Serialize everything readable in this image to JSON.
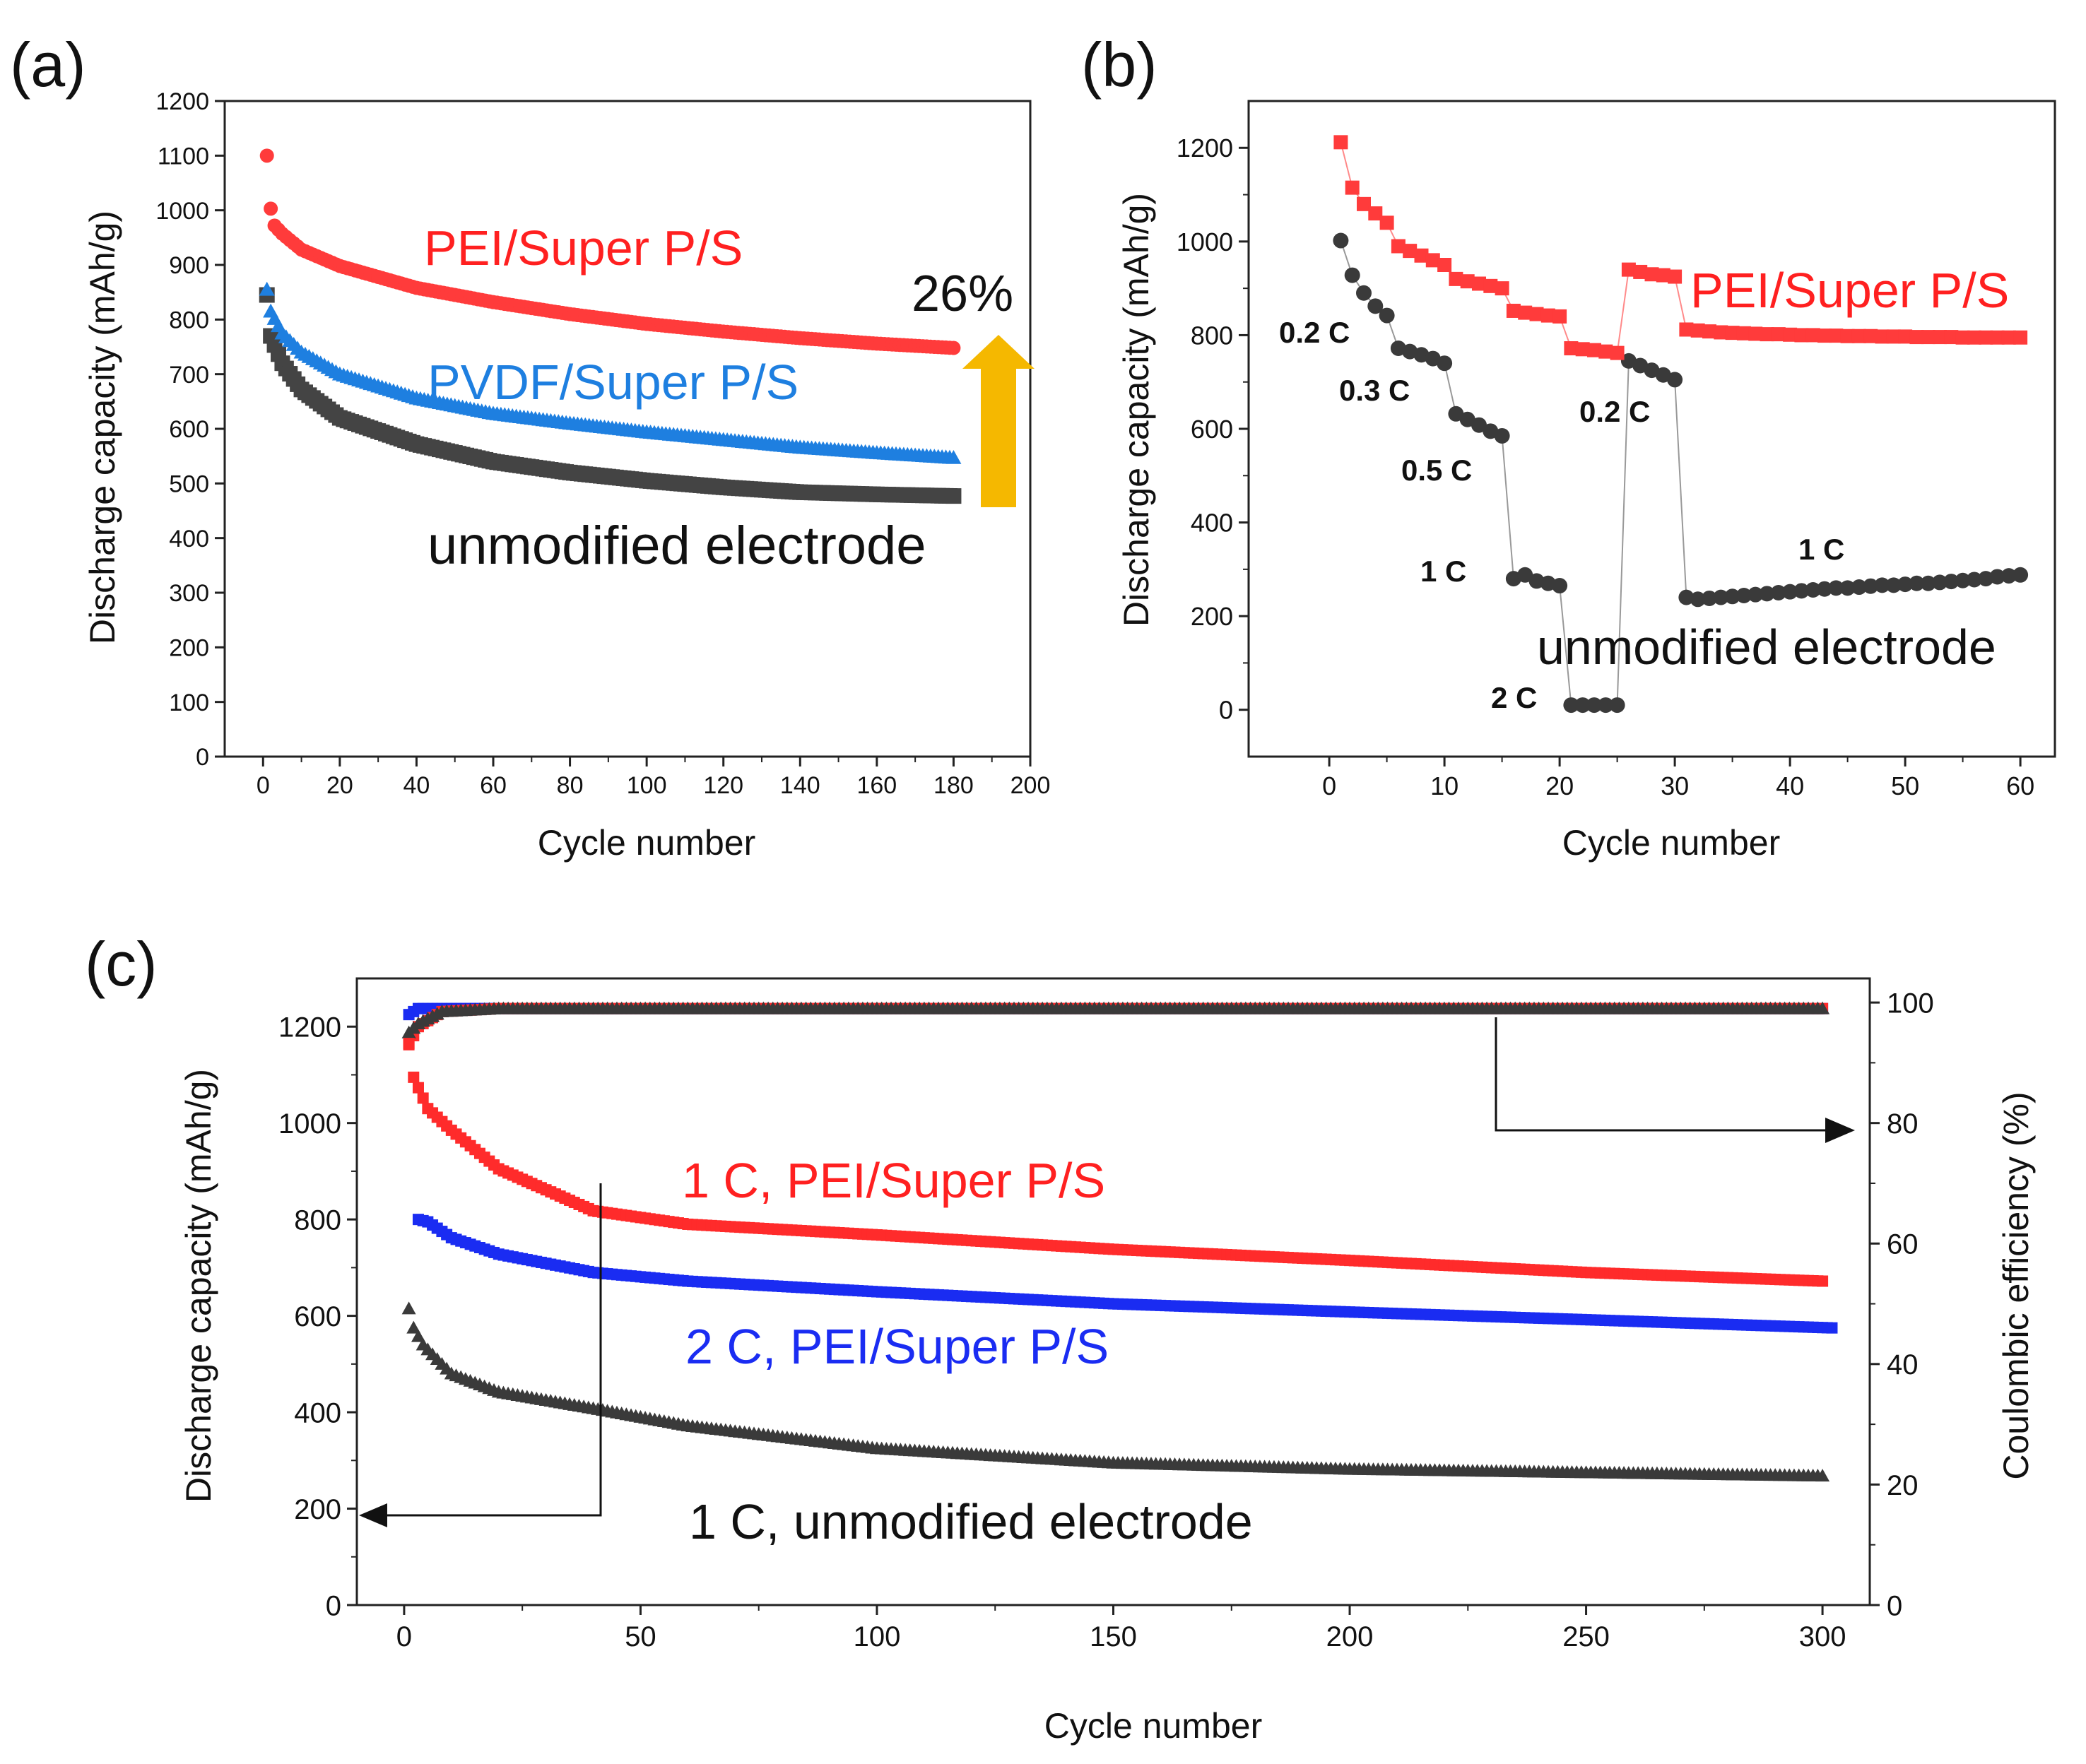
{
  "chart_data": [
    {
      "panel": "(a)",
      "type": "scatter",
      "xlabel": "Cycle number",
      "ylabel": "Discharge capacity (mAh/g)",
      "xlim": [
        -10,
        200
      ],
      "ylim": [
        0,
        1200
      ],
      "xticks": [
        0,
        20,
        40,
        60,
        80,
        100,
        120,
        140,
        160,
        180,
        200
      ],
      "yticks": [
        0,
        100,
        200,
        300,
        400,
        500,
        600,
        700,
        800,
        900,
        1000,
        1100,
        1200
      ],
      "series": [
        {
          "name": "PEI/Super P/S",
          "color": "#ff3b3b",
          "marker": "circle",
          "x_range": [
            1,
            180
          ],
          "anchors": [
            [
              1,
              1100
            ],
            [
              2,
              1003
            ],
            [
              3,
              972
            ],
            [
              5,
              957
            ],
            [
              10,
              928
            ],
            [
              20,
              898
            ],
            [
              40,
              858
            ],
            [
              60,
              832
            ],
            [
              80,
              810
            ],
            [
              100,
              792
            ],
            [
              120,
              778
            ],
            [
              140,
              766
            ],
            [
              160,
              756
            ],
            [
              180,
              748
            ]
          ]
        },
        {
          "name": "PVDF/Super P/S",
          "color": "#1e7fe0",
          "marker": "triangle",
          "x_range": [
            1,
            180
          ],
          "anchors": [
            [
              1,
              855
            ],
            [
              2,
              815
            ],
            [
              5,
              775
            ],
            [
              10,
              740
            ],
            [
              20,
              700
            ],
            [
              40,
              656
            ],
            [
              60,
              628
            ],
            [
              80,
              610
            ],
            [
              100,
              594
            ],
            [
              120,
              580
            ],
            [
              140,
              566
            ],
            [
              160,
              556
            ],
            [
              180,
              547
            ]
          ]
        },
        {
          "name": "unmodified electrode",
          "color": "#444444",
          "marker": "square",
          "x_range": [
            1,
            180
          ],
          "anchors": [
            [
              1,
              845
            ],
            [
              2,
              770
            ],
            [
              5,
              720
            ],
            [
              10,
              672
            ],
            [
              20,
              620
            ],
            [
              40,
              572
            ],
            [
              60,
              540
            ],
            [
              80,
              520
            ],
            [
              100,
              505
            ],
            [
              120,
              493
            ],
            [
              140,
              484
            ],
            [
              160,
              480
            ],
            [
              180,
              477
            ]
          ]
        }
      ],
      "annotations": {
        "label_pei": "PEI/Super P/S",
        "label_pvdf": "PVDF/Super P/S",
        "label_unmod": "unmodified electrode",
        "improvement": "26%"
      },
      "arrow_color": "#f5b800"
    },
    {
      "panel": "(b)",
      "type": "scatter",
      "xlabel": "Cycle number",
      "ylabel": "Discharge capacity (mAh/g)",
      "xlim": [
        -7,
        63
      ],
      "ylim": [
        -100,
        1300
      ],
      "xticks": [
        0,
        10,
        20,
        30,
        40,
        50,
        60
      ],
      "yticks": [
        0,
        200,
        400,
        600,
        800,
        1000,
        1200
      ],
      "series": [
        {
          "name": "PEI/Super P/S",
          "color": "#ff3b3b",
          "marker": "square",
          "x": [
            1,
            2,
            3,
            4,
            5,
            6,
            7,
            8,
            9,
            10,
            11,
            12,
            13,
            14,
            15,
            16,
            17,
            18,
            19,
            20,
            21,
            22,
            23,
            24,
            25,
            26,
            27,
            28,
            29,
            30,
            31,
            32,
            33,
            34,
            35,
            36,
            37,
            38,
            39,
            40,
            41,
            42,
            43,
            44,
            45,
            46,
            47,
            48,
            49,
            50,
            51,
            52,
            53,
            54,
            55,
            56,
            57,
            58,
            59,
            60
          ],
          "y": [
            1212,
            1115,
            1080,
            1060,
            1040,
            990,
            980,
            970,
            960,
            950,
            920,
            915,
            910,
            905,
            900,
            852,
            848,
            845,
            842,
            840,
            772,
            770,
            768,
            765,
            762,
            940,
            935,
            930,
            928,
            925,
            812,
            810,
            808,
            806,
            805,
            804,
            803,
            802,
            802,
            801,
            800,
            800,
            799,
            799,
            798,
            798,
            798,
            797,
            797,
            797,
            796,
            796,
            796,
            796,
            795,
            795,
            795,
            795,
            795,
            795
          ]
        },
        {
          "name": "unmodified electrode",
          "color": "#3a3a3a",
          "marker": "circle",
          "x": [
            1,
            2,
            3,
            4,
            5,
            6,
            7,
            8,
            9,
            10,
            11,
            12,
            13,
            14,
            15,
            16,
            17,
            18,
            19,
            20,
            21,
            22,
            23,
            24,
            25,
            26,
            27,
            28,
            29,
            30,
            31,
            32,
            33,
            34,
            35,
            36,
            37,
            38,
            39,
            40,
            41,
            42,
            43,
            44,
            45,
            46,
            47,
            48,
            49,
            50,
            51,
            52,
            53,
            54,
            55,
            56,
            57,
            58,
            59,
            60
          ],
          "y": [
            1002,
            928,
            890,
            862,
            842,
            772,
            765,
            758,
            750,
            740,
            632,
            620,
            608,
            595,
            585,
            280,
            288,
            275,
            270,
            265,
            10,
            10,
            10,
            10,
            10,
            745,
            735,
            725,
            715,
            705,
            240,
            236,
            238,
            240,
            242,
            244,
            246,
            248,
            250,
            252,
            254,
            256,
            258,
            260,
            260,
            262,
            264,
            266,
            266,
            268,
            270,
            270,
            272,
            274,
            276,
            278,
            280,
            284,
            286,
            288
          ]
        }
      ],
      "rate_labels": [
        "0.2 C",
        "0.3 C",
        "0.5 C",
        "1 C",
        "2 C",
        "0.2 C",
        "1 C"
      ],
      "annotations": {
        "label_pei": "PEI/Super P/S",
        "label_unmod": "unmodified electrode"
      }
    },
    {
      "panel": "(c)",
      "type": "scatter",
      "xlabel": "Cycle number",
      "ylabel": "Discharge capacity (mAh/g)",
      "y2label": "Coulombic efficiency (%)",
      "xlim": [
        -10,
        310
      ],
      "ylim": [
        0,
        1300
      ],
      "y2lim": [
        0,
        104
      ],
      "xticks": [
        0,
        50,
        100,
        150,
        200,
        250,
        300
      ],
      "yticks": [
        0,
        200,
        400,
        600,
        800,
        1000,
        1200
      ],
      "y2ticks": [
        0,
        20,
        40,
        60,
        80,
        100
      ],
      "series": [
        {
          "name": "1 C, PEI/Super P/S",
          "axis": "left",
          "color": "#ff2b2b",
          "marker": "square",
          "x_range": [
            1,
            300
          ],
          "anchors": [
            [
              1,
              1165
            ],
            [
              2,
              1095
            ],
            [
              5,
              1030
            ],
            [
              10,
              985
            ],
            [
              20,
              905
            ],
            [
              40,
              818
            ],
            [
              60,
              790
            ],
            [
              100,
              768
            ],
            [
              150,
              738
            ],
            [
              200,
              715
            ],
            [
              250,
              690
            ],
            [
              300,
              672
            ]
          ]
        },
        {
          "name": "2 C, PEI/Super P/S",
          "axis": "left",
          "color": "#1a2cf2",
          "marker": "square",
          "x_range": [
            3,
            302
          ],
          "anchors": [
            [
              3,
              800
            ],
            [
              5,
              795
            ],
            [
              10,
              762
            ],
            [
              20,
              728
            ],
            [
              40,
              690
            ],
            [
              60,
              672
            ],
            [
              100,
              650
            ],
            [
              150,
              625
            ],
            [
              200,
              608
            ],
            [
              250,
              592
            ],
            [
              302,
              575
            ]
          ]
        },
        {
          "name": "1 C, unmodified electrode",
          "axis": "left",
          "color": "#3a3a3a",
          "marker": "triangle",
          "x_range": [
            1,
            300
          ],
          "anchors": [
            [
              1,
              615
            ],
            [
              2,
              575
            ],
            [
              4,
              540
            ],
            [
              10,
              480
            ],
            [
              20,
              442
            ],
            [
              40,
              408
            ],
            [
              60,
              372
            ],
            [
              100,
              325
            ],
            [
              150,
              295
            ],
            [
              200,
              282
            ],
            [
              250,
              275
            ],
            [
              300,
              268
            ]
          ]
        },
        {
          "name": "CE 1 C, PEI/Super P/S",
          "axis": "right",
          "color": "#ff2b2b",
          "marker": "square",
          "x_range": [
            1,
            300
          ],
          "anchors": [
            [
              1,
              93
            ],
            [
              3,
              96
            ],
            [
              8,
              98.5
            ],
            [
              20,
              99
            ],
            [
              300,
              99
            ]
          ]
        },
        {
          "name": "CE 2 C, PEI/Super P/S",
          "axis": "right",
          "color": "#1a2cf2",
          "marker": "square",
          "x_range": [
            1,
            300
          ],
          "anchors": [
            [
              1,
              98
            ],
            [
              3,
              99
            ],
            [
              300,
              99
            ]
          ]
        },
        {
          "name": "CE 1 C, unmodified electrode",
          "axis": "right",
          "color": "#3a3a3a",
          "marker": "triangle",
          "x_range": [
            1,
            300
          ],
          "anchors": [
            [
              1,
              95
            ],
            [
              3,
              96.5
            ],
            [
              8,
              98.5
            ],
            [
              20,
              99
            ],
            [
              300,
              99
            ]
          ]
        }
      ],
      "annotations": {
        "label_1c_pei": "1 C, PEI/Super P/S",
        "label_2c_pei": "2 C, PEI/Super P/S",
        "label_1c_unmod": "1 C, unmodified electrode"
      }
    }
  ]
}
